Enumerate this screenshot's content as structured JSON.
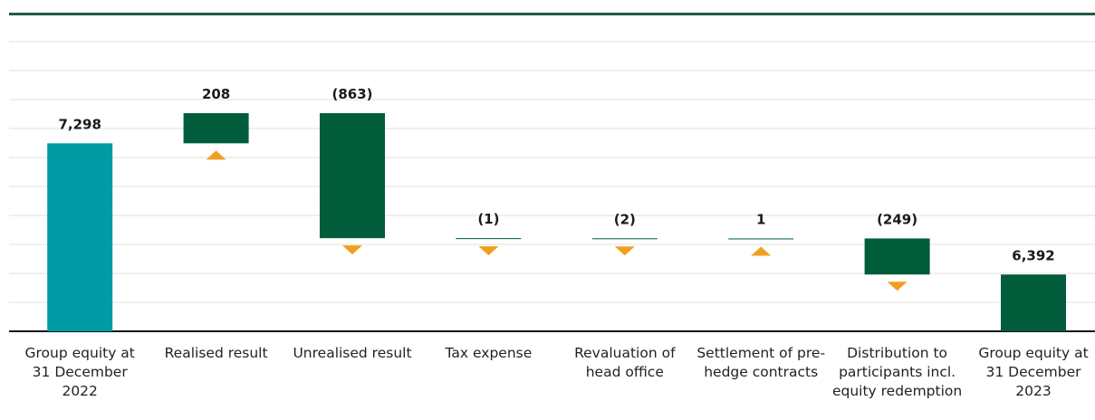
{
  "chart_data": {
    "type": "waterfall",
    "categories": [
      "Group equity at 31 December 2022",
      "Realised result",
      "Unrealised result",
      "Tax expense",
      "Revaluation of head office",
      "Settlement of pre-hedge contracts",
      "Distribution to participants incl. equity redemption",
      "Group equity at 31 December 2023"
    ],
    "values": [
      7298,
      208,
      -863,
      -1,
      -2,
      1,
      -249,
      6392
    ],
    "value_labels": [
      "7,298",
      "208",
      "(863)",
      "(1)",
      "(2)",
      "1",
      "(249)",
      "6,392"
    ],
    "colors": {
      "start": "#009ba4",
      "change": "#005c3a",
      "end": "#005c3a",
      "arrow": "#f0a01e"
    },
    "ylim": [
      6000,
      8200
    ],
    "yticks": [
      6000,
      6200,
      6400,
      6600,
      6800,
      7000,
      7200,
      7400,
      7600,
      7800,
      8000
    ],
    "grid": true
  }
}
